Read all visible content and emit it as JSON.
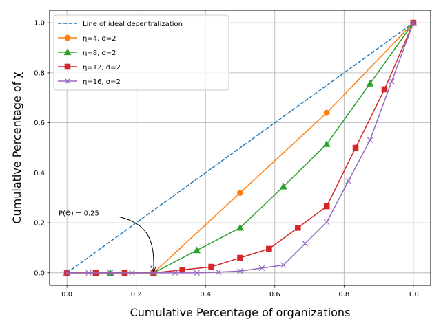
{
  "chart_data": {
    "type": "line",
    "xlabel": "Cumulative Percentage of organizations",
    "ylabel": "Cumulative Percentage of χ",
    "xlim": [
      -0.05,
      1.05
    ],
    "ylim": [
      -0.05,
      1.05
    ],
    "xticks": [
      0.0,
      0.2,
      0.4,
      0.6,
      0.8,
      1.0
    ],
    "yticks": [
      0.0,
      0.2,
      0.4,
      0.6,
      0.8,
      1.0
    ],
    "xtick_labels": [
      "0.0",
      "0.2",
      "0.4",
      "0.6",
      "0.8",
      "1.0"
    ],
    "ytick_labels": [
      "0.0",
      "0.2",
      "0.4",
      "0.6",
      "0.8",
      "1.0"
    ],
    "grid": true,
    "legend_position": "top-left",
    "series": [
      {
        "name": "Line of ideal decentralization",
        "color": "#1f77b4",
        "dash": true,
        "marker": "none",
        "x": [
          0.0,
          1.0
        ],
        "y": [
          0.0,
          1.0
        ]
      },
      {
        "name": "η=4, σ=2",
        "color": "#ff7f0e",
        "marker": "circle",
        "x": [
          0.0,
          0.25,
          0.5,
          0.75,
          1.0
        ],
        "y": [
          0.0,
          0.0,
          0.32,
          0.64,
          1.0
        ]
      },
      {
        "name": "η=8, σ=2",
        "color": "#2ca02c",
        "marker": "triangle",
        "x": [
          0.0,
          0.125,
          0.25,
          0.375,
          0.5,
          0.625,
          0.75,
          0.875,
          1.0
        ],
        "y": [
          0.0,
          0.0,
          0.0,
          0.09,
          0.18,
          0.345,
          0.515,
          0.757,
          1.0
        ]
      },
      {
        "name": "η=12, σ=2",
        "color": "#d62728",
        "marker": "square",
        "x": [
          0.0,
          0.0833,
          0.1667,
          0.25,
          0.3333,
          0.4167,
          0.5,
          0.5833,
          0.6667,
          0.75,
          0.8333,
          0.9167,
          1.0
        ],
        "y": [
          0.0,
          0.0,
          0.0,
          0.0,
          0.012,
          0.024,
          0.06,
          0.096,
          0.18,
          0.266,
          0.5,
          0.734,
          1.0
        ]
      },
      {
        "name": "η=16, σ=2",
        "color": "#9467bd",
        "marker": "x",
        "x": [
          0.0,
          0.0625,
          0.125,
          0.1875,
          0.25,
          0.3125,
          0.375,
          0.4375,
          0.5,
          0.5625,
          0.625,
          0.6875,
          0.75,
          0.8125,
          0.875,
          0.9375,
          1.0
        ],
        "y": [
          0.0,
          0.0,
          0.0,
          0.0,
          0.0,
          0.0,
          0.0,
          0.003,
          0.007,
          0.019,
          0.031,
          0.117,
          0.203,
          0.367,
          0.531,
          0.766,
          1.0
        ]
      }
    ],
    "annotations": [
      {
        "text": "P(Θ) = 0.25",
        "x": 0.0,
        "y": 0.24,
        "arrow_to": [
          0.25,
          0.0
        ]
      }
    ]
  }
}
